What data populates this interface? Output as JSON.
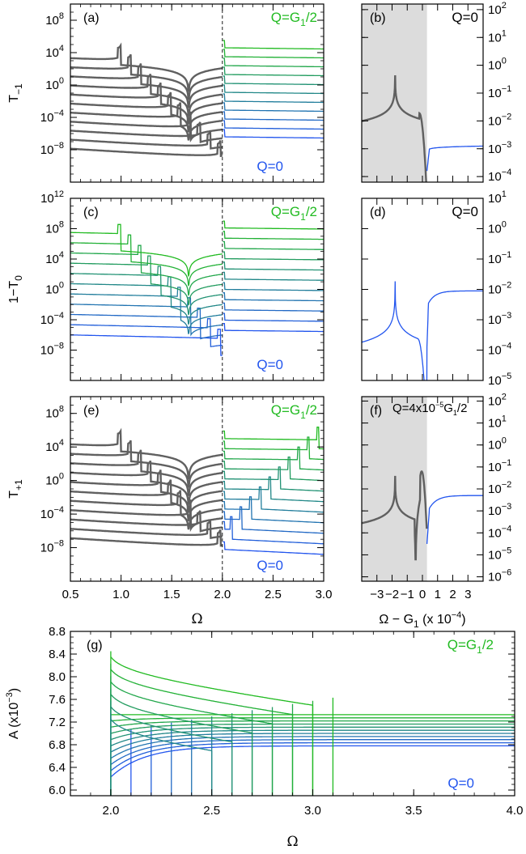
{
  "colors": {
    "green": "#22bb22",
    "blue": "#2255ee",
    "gray": "#606060",
    "shade": "#dcdcdc"
  },
  "chart_data": [
    {
      "panel": "a",
      "tag": "(a)",
      "type": "line",
      "xlim": [
        0.5,
        3.0
      ],
      "xticks": [
        "0.5",
        "1.0",
        "1.5",
        "2.0",
        "2.5",
        "3.0"
      ],
      "ylog": true,
      "ylim_log10": [
        -12,
        10
      ],
      "yticks": [
        {
          "exp": -8,
          "label": "10",
          "sup": "−8"
        },
        {
          "exp": -4,
          "label": "10",
          "sup": "−4"
        },
        {
          "exp": 0,
          "label": "10",
          "sup": "0"
        },
        {
          "exp": 4,
          "label": "10",
          "sup": "4"
        },
        {
          "exp": 8,
          "label": "10",
          "sup": "8"
        }
      ],
      "ylabel_base": "T",
      "ylabel_sub": "−1",
      "top_label": {
        "text": "Q=G",
        "sub": "1",
        "tail": "/2"
      },
      "bottom_label": "Q=0",
      "dashed_x": 2.0,
      "grey_left_of_2": true,
      "n_series": 11
    },
    {
      "panel": "b",
      "tag": "(b)",
      "type": "line",
      "xlim": [
        -4,
        4
      ],
      "shade_x": [
        -4,
        0.3
      ],
      "ylog": true,
      "ylim_log10": [
        -4.2,
        2.2
      ],
      "yticks": [
        {
          "exp": -4,
          "label": "10",
          "sup": "−4"
        },
        {
          "exp": -3,
          "label": "10",
          "sup": "−3"
        },
        {
          "exp": -2,
          "label": "10",
          "sup": "−2"
        },
        {
          "exp": -1,
          "label": "10",
          "sup": "−1"
        },
        {
          "exp": 0,
          "label": "10",
          "sup": "0"
        },
        {
          "exp": 1,
          "label": "10",
          "sup": "1"
        },
        {
          "exp": 2,
          "label": "10",
          "sup": "2"
        }
      ],
      "q_label": "Q=0"
    },
    {
      "panel": "c",
      "tag": "(c)",
      "type": "line",
      "xlim": [
        0.5,
        3.0
      ],
      "xticks": [
        "0.5",
        "1.0",
        "1.5",
        "2.0",
        "2.5",
        "3.0"
      ],
      "ylog": true,
      "ylim_log10": [
        -12,
        12
      ],
      "yticks": [
        {
          "exp": -8,
          "label": "10",
          "sup": "−8"
        },
        {
          "exp": -4,
          "label": "10",
          "sup": "−4"
        },
        {
          "exp": 0,
          "label": "10",
          "sup": "0"
        },
        {
          "exp": 4,
          "label": "10",
          "sup": "4"
        },
        {
          "exp": 8,
          "label": "10",
          "sup": "8"
        },
        {
          "exp": 12,
          "label": "10",
          "sup": "12"
        }
      ],
      "ylabel_text": "1−T",
      "ylabel_sub": "0",
      "top_label": {
        "text": "Q=G",
        "sub": "1",
        "tail": "/2"
      },
      "bottom_label": "Q=0",
      "dashed_x": 2.0,
      "n_series": 11
    },
    {
      "panel": "d",
      "tag": "(d)",
      "type": "line",
      "xlim": [
        -4,
        4
      ],
      "ylog": true,
      "ylim_log10": [
        -5,
        1
      ],
      "yticks": [
        {
          "exp": -5,
          "label": "10",
          "sup": "−5"
        },
        {
          "exp": -4,
          "label": "10",
          "sup": "−4"
        },
        {
          "exp": -3,
          "label": "10",
          "sup": "−3"
        },
        {
          "exp": -2,
          "label": "10",
          "sup": "−2"
        },
        {
          "exp": -1,
          "label": "10",
          "sup": "−1"
        },
        {
          "exp": 0,
          "label": "10",
          "sup": "0"
        },
        {
          "exp": 1,
          "label": "10",
          "sup": "1"
        }
      ],
      "q_label": "Q=0"
    },
    {
      "panel": "e",
      "tag": "(e)",
      "type": "line",
      "xlim": [
        0.5,
        3.0
      ],
      "xticks": [
        "0.5",
        "1.0",
        "1.5",
        "2.0",
        "2.5",
        "3.0"
      ],
      "ylog": true,
      "ylim_log10": [
        -12,
        10
      ],
      "yticks": [
        {
          "exp": -8,
          "label": "10",
          "sup": "−8"
        },
        {
          "exp": -4,
          "label": "10",
          "sup": "−4"
        },
        {
          "exp": 0,
          "label": "10",
          "sup": "0"
        },
        {
          "exp": 4,
          "label": "10",
          "sup": "4"
        },
        {
          "exp": 8,
          "label": "10",
          "sup": "8"
        }
      ],
      "ylabel_base": "T",
      "ylabel_sub": "+1",
      "top_label": {
        "text": "Q=G",
        "sub": "1",
        "tail": "/2"
      },
      "bottom_label": "Q=0",
      "xlabel": "Ω",
      "dashed_x": 2.0,
      "n_series": 11
    },
    {
      "panel": "f",
      "tag": "(f)",
      "type": "line",
      "xlim": [
        -4,
        4
      ],
      "shade_x": [
        -4,
        0.3
      ],
      "xticks": [
        "−3",
        "−2",
        "−1",
        "0",
        "1",
        "2",
        "3"
      ],
      "ylog": true,
      "ylim_log10": [
        -6.2,
        2.2
      ],
      "yticks": [
        {
          "exp": -6,
          "label": "10",
          "sup": "−6"
        },
        {
          "exp": -5,
          "label": "10",
          "sup": "−5"
        },
        {
          "exp": -4,
          "label": "10",
          "sup": "−4"
        },
        {
          "exp": -3,
          "label": "10",
          "sup": "−3"
        },
        {
          "exp": -2,
          "label": "10",
          "sup": "−2"
        },
        {
          "exp": -1,
          "label": "10",
          "sup": "−1"
        },
        {
          "exp": 0,
          "label": "10",
          "sup": "0"
        },
        {
          "exp": 1,
          "label": "10",
          "sup": "1"
        },
        {
          "exp": 2,
          "label": "10",
          "sup": "2"
        }
      ],
      "q_label": {
        "text": "Q=4x10",
        "sup": "−5",
        "mid": "G",
        "sub": "1",
        "tail": "/2"
      },
      "xlabel": {
        "text": "Ω − G",
        "sub": "1",
        "tail": " (x 10",
        "sup": "−4",
        "end": ")"
      }
    },
    {
      "panel": "g",
      "tag": "(g)",
      "type": "line",
      "xlim": [
        1.8,
        4.0
      ],
      "xticks": [
        "2.0",
        "2.5",
        "3.0",
        "3.5",
        "4.0"
      ],
      "ylim": [
        5.9,
        8.8
      ],
      "yticks": [
        "6.0",
        "6.4",
        "6.8",
        "7.2",
        "7.6",
        "8.0",
        "8.4",
        "8.8"
      ],
      "ylabel": {
        "text": "A (x10",
        "sup": "−3",
        "end": ")"
      },
      "xlabel": "Ω",
      "top_label": {
        "text": "Q=G",
        "sub": "1",
        "tail": "/2"
      },
      "bottom_label": "Q=0",
      "n_series": 11
    }
  ]
}
